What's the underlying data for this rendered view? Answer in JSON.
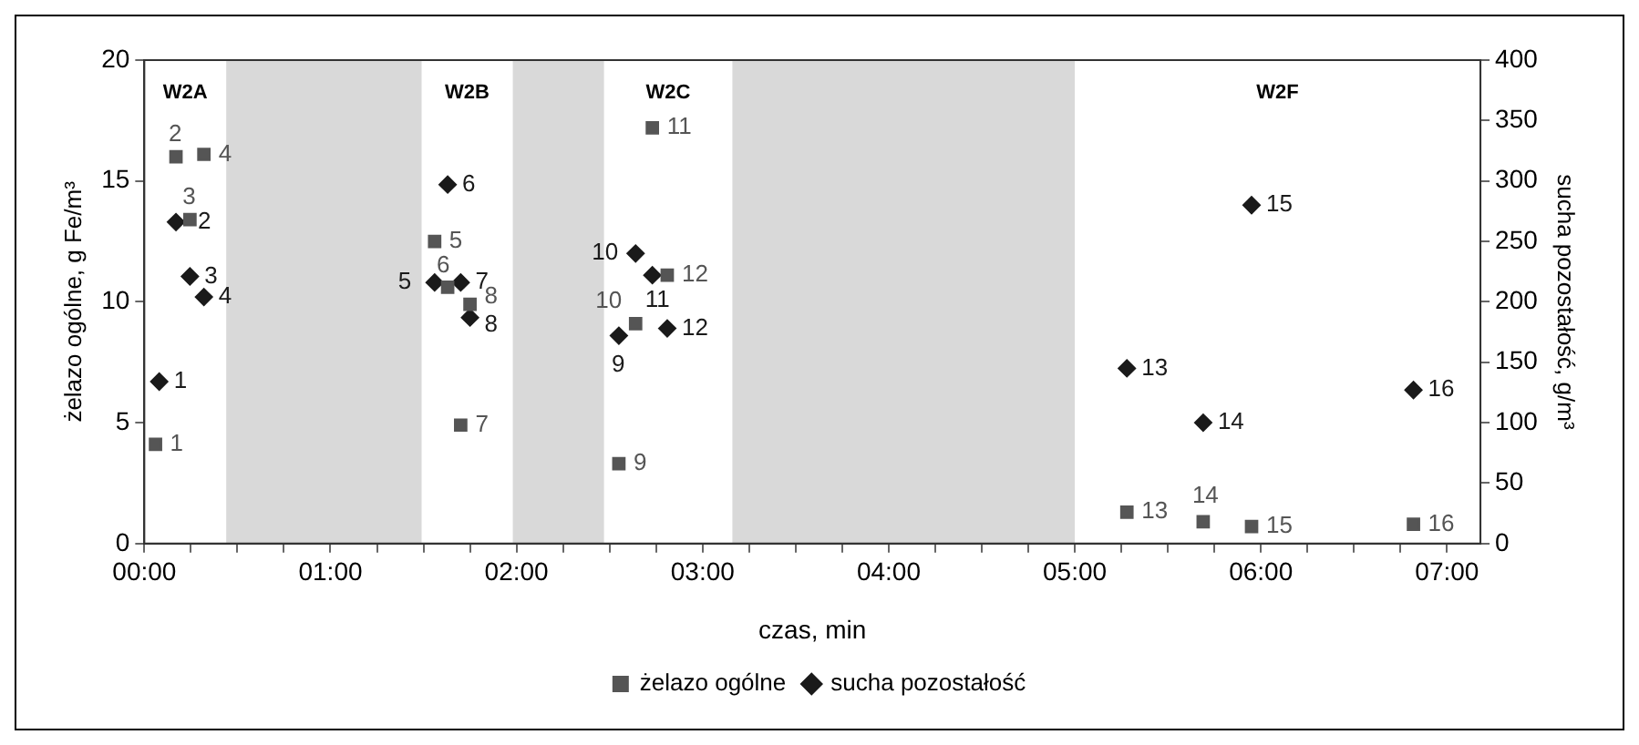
{
  "chart_data": {
    "type": "scatter",
    "xlabel": "czas, min",
    "ylabel": "żelazo ogólne, g Fe/m³",
    "y2label": "sucha pozostałość, g/m³",
    "series": [
      {
        "name": "żelazo ogólne",
        "color": "#555555",
        "marker": "square",
        "x": [
          0.06,
          0.17,
          0.245,
          0.32,
          1.56,
          1.63,
          1.7,
          1.75,
          2.55,
          2.64,
          2.73,
          2.81,
          5.28,
          5.69,
          5.95,
          6.82
        ],
        "values": [
          4.1,
          16.0,
          13.4,
          16.1,
          12.5,
          10.6,
          4.9,
          9.9,
          3.3,
          9.1,
          17.2,
          11.1,
          1.3,
          0.9,
          0.7,
          0.8
        ]
      },
      {
        "name": "sucha pozostałość",
        "color": "#1a1a1a",
        "marker": "diamond",
        "axis": "y2",
        "x": [
          0.08,
          0.17,
          0.245,
          0.32,
          1.56,
          1.63,
          1.7,
          1.75,
          2.55,
          2.64,
          2.73,
          2.81,
          5.28,
          5.69,
          5.95,
          6.82
        ],
        "values": [
          134,
          266,
          221,
          204,
          216,
          297,
          216,
          187,
          172,
          240,
          222,
          178,
          145,
          100,
          280,
          127
        ]
      }
    ],
    "xlim": [
      0,
      7.18
    ],
    "xticks": [
      {
        "value": 0,
        "label": "00:00"
      },
      {
        "value": 0.25,
        "label": null
      },
      {
        "value": 0.5,
        "label": null
      },
      {
        "value": 0.75,
        "label": null
      },
      {
        "value": 1,
        "label": "01:00"
      },
      {
        "value": 1.25,
        "label": null
      },
      {
        "value": 1.5,
        "label": null
      },
      {
        "value": 1.75,
        "label": null
      },
      {
        "value": 2,
        "label": "02:00"
      },
      {
        "value": 2.25,
        "label": null
      },
      {
        "value": 2.5,
        "label": null
      },
      {
        "value": 2.75,
        "label": null
      },
      {
        "value": 3,
        "label": "03:00"
      },
      {
        "value": 3.25,
        "label": null
      },
      {
        "value": 3.5,
        "label": null
      },
      {
        "value": 3.75,
        "label": null
      },
      {
        "value": 4,
        "label": "04:00"
      },
      {
        "value": 4.25,
        "label": null
      },
      {
        "value": 4.5,
        "label": null
      },
      {
        "value": 4.75,
        "label": null
      },
      {
        "value": 5,
        "label": "05:00"
      },
      {
        "value": 5.25,
        "label": null
      },
      {
        "value": 5.5,
        "label": null
      },
      {
        "value": 5.75,
        "label": null
      },
      {
        "value": 6,
        "label": "06:00"
      },
      {
        "value": 6.25,
        "label": null
      },
      {
        "value": 6.5,
        "label": null
      },
      {
        "value": 6.75,
        "label": null
      },
      {
        "value": 7,
        "label": "07:00"
      }
    ],
    "ylim": [
      0,
      20
    ],
    "yticks": [
      0,
      5,
      10,
      15,
      20
    ],
    "y2lim": [
      0,
      400
    ],
    "y2ticks": [
      0,
      50,
      100,
      150,
      200,
      250,
      300,
      350,
      400
    ],
    "bands": [
      {
        "axis": "x",
        "from": 0.44,
        "to": 1.49,
        "color": "#d9d9d9"
      },
      {
        "axis": "x",
        "from": 1.98,
        "to": 2.47,
        "color": "#d9d9d9"
      },
      {
        "axis": "x",
        "from": 3.16,
        "to": 5.0,
        "color": "#d9d9d9"
      }
    ],
    "annotations": [
      "W2A",
      "W2B",
      "W2C",
      "W2F",
      {
        "text": "1",
        "x": 0.06,
        "y": 4.1
      },
      {
        "text": "2",
        "x": 0.17,
        "y": 16.0
      },
      {
        "text": "3",
        "x": 0.245,
        "y": 13.4
      },
      {
        "text": "4",
        "x": 0.32,
        "y": 16.1
      },
      {
        "text": "5",
        "x": 1.56,
        "y": 12.5
      },
      {
        "text": "6",
        "x": 1.63,
        "y": 10.6
      },
      {
        "text": "7",
        "x": 1.7,
        "y": 4.9
      },
      {
        "text": "8",
        "x": 1.75,
        "y": 9.9
      },
      {
        "text": "9",
        "x": 2.55,
        "y": 3.3
      },
      {
        "text": "10",
        "x": 2.64,
        "y": 9.1
      },
      {
        "text": "11",
        "x": 2.73,
        "y": 17.2
      },
      {
        "text": "12",
        "x": 2.81,
        "y": 11.1
      },
      {
        "text": "13",
        "x": 5.28,
        "y": 1.3
      },
      {
        "text": "14",
        "x": 5.69,
        "y": 0.9
      },
      {
        "text": "15",
        "x": 5.95,
        "y": 0.7
      },
      {
        "text": "16",
        "x": 6.82,
        "y": 0.8
      },
      {
        "text": "1",
        "x": 0.08,
        "y": 6.7
      },
      {
        "text": "2",
        "x": 0.17,
        "y": 13.3
      },
      {
        "text": "3",
        "x": 0.245,
        "y": 11.05
      },
      {
        "text": "4",
        "x": 0.32,
        "y": 10.2
      },
      {
        "text": "5",
        "x": 1.56,
        "y": 10.8
      },
      {
        "text": "6",
        "x": 1.63,
        "y": 14.85
      },
      {
        "text": "7",
        "x": 1.7,
        "y": 10.8
      },
      {
        "text": "8",
        "x": 1.75,
        "y": 9.35
      },
      {
        "text": "9",
        "x": 2.55,
        "y": 8.6
      },
      {
        "text": "10",
        "x": 2.64,
        "y": 12.0
      },
      {
        "text": "11",
        "x": 2.73,
        "y": 11.1
      },
      {
        "text": "12",
        "x": 2.81,
        "y": 8.9
      },
      {
        "text": "13",
        "x": 5.28,
        "y": 7.25
      },
      {
        "text": "14",
        "x": 5.69,
        "y": 5.0
      },
      {
        "text": "15",
        "x": 5.95,
        "y": 14.0
      },
      {
        "text": "16",
        "x": 6.82,
        "y": 6.35
      }
    ],
    "grid": false,
    "legend": "bottom"
  }
}
